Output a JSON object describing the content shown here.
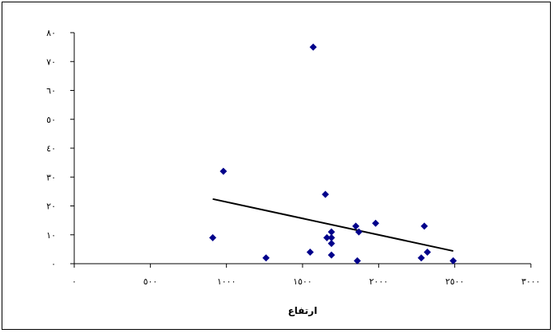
{
  "chart_data": {
    "type": "scatter",
    "title": "",
    "xlabel": "ارتفاع",
    "ylabel": "",
    "xlim": [
      0,
      3000
    ],
    "ylim": [
      0,
      80
    ],
    "grid": false,
    "legend": "none",
    "x_ticks": [
      0,
      500,
      1000,
      1500,
      2000,
      2500,
      3000
    ],
    "y_ticks": [
      0,
      10,
      20,
      30,
      40,
      50,
      60,
      70,
      80
    ],
    "x_tick_labels": [
      "٠",
      "٥٠٠",
      "١٠٠٠",
      "١٥٠٠",
      "٢٠٠٠",
      "٢٥٠٠",
      "٣٠٠٠"
    ],
    "y_tick_labels": [
      "٠",
      "١٠",
      "٢٠",
      "٣٠",
      "٤٠",
      "٥٠",
      "٦٠",
      "٧٠",
      "٨٠"
    ],
    "marker_color": "#00008B",
    "trendline_color": "#000000",
    "series": [
      {
        "points": [
          [
            910,
            9
          ],
          [
            980,
            32
          ],
          [
            1260,
            2
          ],
          [
            1550,
            4
          ],
          [
            1570,
            75
          ],
          [
            1650,
            24
          ],
          [
            1660,
            9
          ],
          [
            1690,
            11
          ],
          [
            1690,
            9
          ],
          [
            1690,
            7
          ],
          [
            1690,
            3
          ],
          [
            1850,
            13
          ],
          [
            1860,
            1
          ],
          [
            1870,
            11
          ],
          [
            1980,
            14
          ],
          [
            2280,
            2
          ],
          [
            2300,
            13
          ],
          [
            2320,
            4
          ],
          [
            2490,
            1
          ]
        ]
      }
    ],
    "trendline": {
      "x": [
        910,
        2490
      ],
      "y": [
        22.4,
        4.4
      ]
    }
  }
}
